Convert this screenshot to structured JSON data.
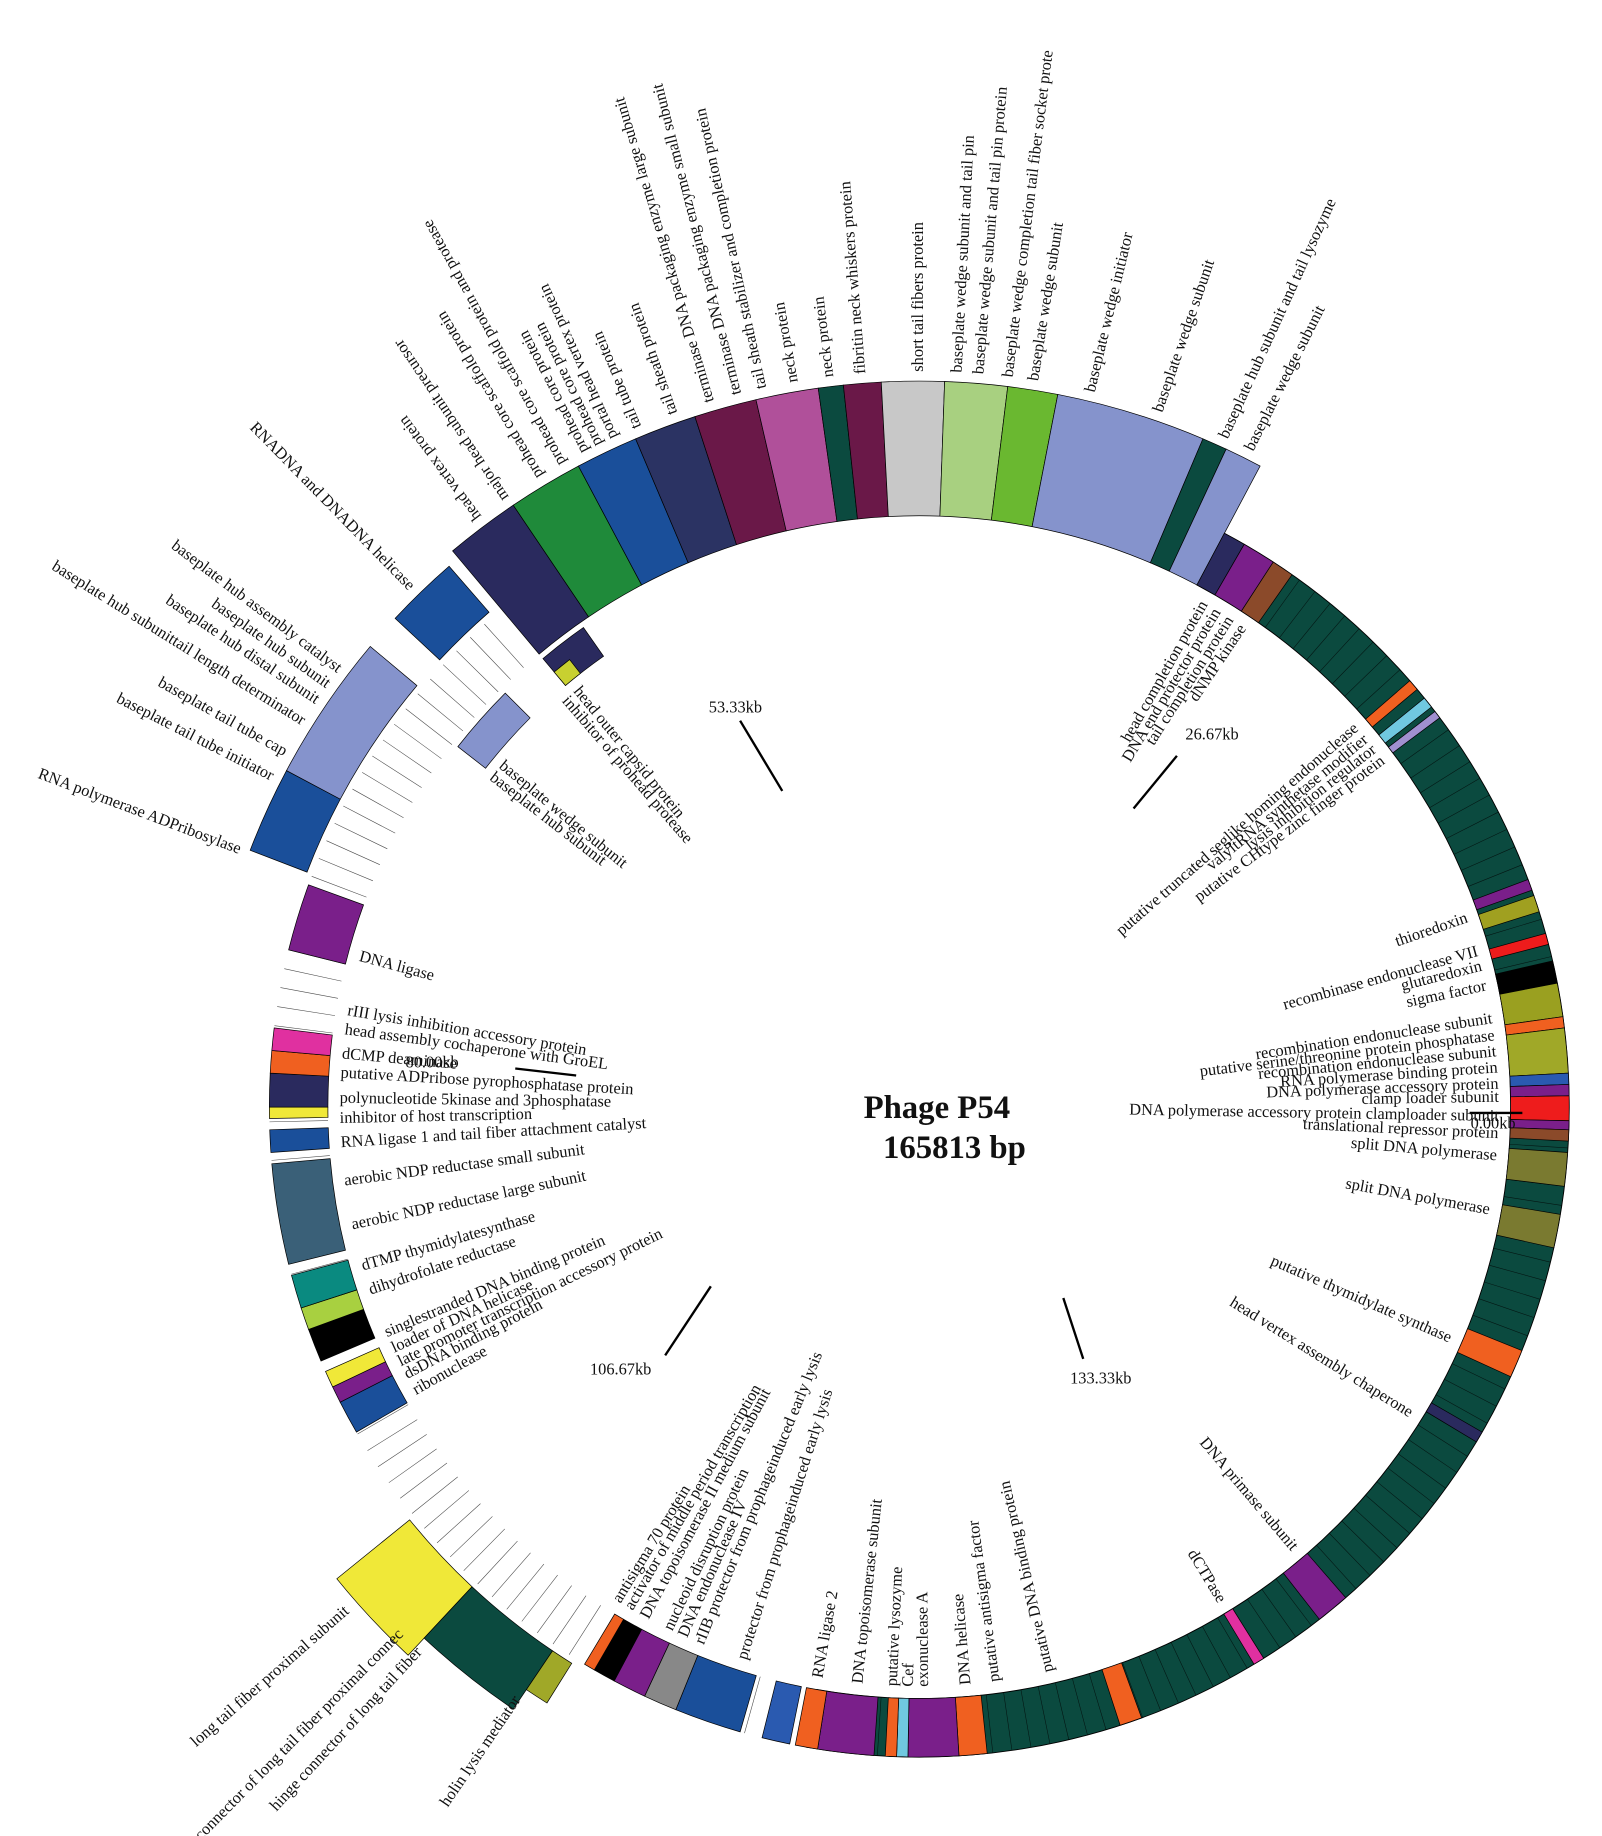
{
  "title": "Phage P54",
  "length": "165813 bp",
  "scale_labels": [
    "0.00kb",
    "26.67kb",
    "53.33kb",
    "80.00kb",
    "106.67kb",
    "133.33kb"
  ],
  "gene_labels": [
    "head vertex protein",
    "major head subunit precursor",
    "prohead core scaffold protein",
    "prohead core scaffold protein and protease",
    "prohead core protein",
    "prohead core protein",
    "portal head vertex protein",
    "tail tube protein",
    "tail sheath protein",
    "terminase DNA packaging enzyme large subunit",
    "terminase DNA packaging enzyme small subunit",
    "tail sheath stabilizer and completion protein",
    "neck protein",
    "neck protein",
    "fibritin neck whiskers protein",
    "short tail fibers protein",
    "baseplate wedge subunit and tail pin",
    "baseplate wedge subunit and tail pin protein",
    "baseplate wedge completion tail fiber socket prote",
    "baseplate wedge subunit",
    "baseplate wedge initiator",
    "baseplate wedge subunit",
    "baseplate hub subunit and tail lysozyme",
    "baseplate wedge subunit",
    "head completion protein",
    "DNA end protector protein",
    "tail completion protein",
    "dNMP kinase",
    "putative truncated seglike homing endonuclease",
    "valyltRNA synthetase modifier",
    "lysis inhibition regulator",
    "putative CHtype zinc finger protein",
    "thioredoxin",
    "recombinase endonuclease VII",
    "glutaredoxin",
    "sigma factor",
    "recombination endonuclease subunit",
    "putative serine/threonine protein phosphatase",
    "recombination endonuclease subunit",
    "RNA polymerase binding protein",
    "DNA polymerase accessory protein",
    "clamp loader subunit",
    "DNA polymerase accessory protein clamploader subunit",
    "translational repressor protein",
    "split DNA polymerase",
    "split DNA polymerase",
    "putative thymidylate synthase",
    "head vertex assembly chaperone",
    "DNA primase subunit",
    "dCTPase",
    "antisigma 70 protein",
    "activator of middle period transcription",
    "DNA topoisomerase II medium subunit",
    "nucleoid disruption protein",
    "DNA endonuclease IV",
    "rIIB protector from prophageinduced early lysis",
    "protector from prophageinduced early lysis",
    "RNA ligase 2",
    "DNA topoisomerase subunit",
    "putative lysozyme",
    "Cef",
    "exonuclease A",
    "DNA helicase",
    "putative antisigma factor",
    "putative DNA binding protein",
    "DNA ligase",
    "rIII lysis inhibition accessory protein",
    "head assembly cochaperone with GroEL",
    "dCMP deaminase",
    "putative ADPribose pyrophosphatase protein",
    "polynucleotide 5kinase and 3phosphatase",
    "inhibitor of host transcription",
    "RNA ligase 1 and tail fiber attachment catalyst",
    "aerobic NDP reductase small subunit",
    "aerobic NDP reductase large subunit",
    "dTMP thymidylatesynthase",
    "dihydrofolate reductase",
    "singlestranded DNA binding protein",
    "loader of DNA helicase",
    "late promoter transcription accessory protein",
    "dsDNA binding protein",
    "ribonuclease",
    "RNADNA and DNADNA helicase",
    "baseplate hub assembly catalyst",
    "baseplate hub subunit",
    "baseplate hub distal subunit",
    "baseplate hub subunittail length determinator",
    "baseplate tail tube cap",
    "baseplate tail tube initiator",
    "RNA polymerase ADPribosylase",
    "head outer capsid protein",
    "inhibitor of prohead protease",
    "baseplate wedge subunit",
    "baseplate hub subunit",
    "long tail fiber proximal subunit",
    "hinge connector of long tail fiber proximal connec",
    "hinge connector of long tail fiber",
    "holin lysis mediator"
  ]
}
